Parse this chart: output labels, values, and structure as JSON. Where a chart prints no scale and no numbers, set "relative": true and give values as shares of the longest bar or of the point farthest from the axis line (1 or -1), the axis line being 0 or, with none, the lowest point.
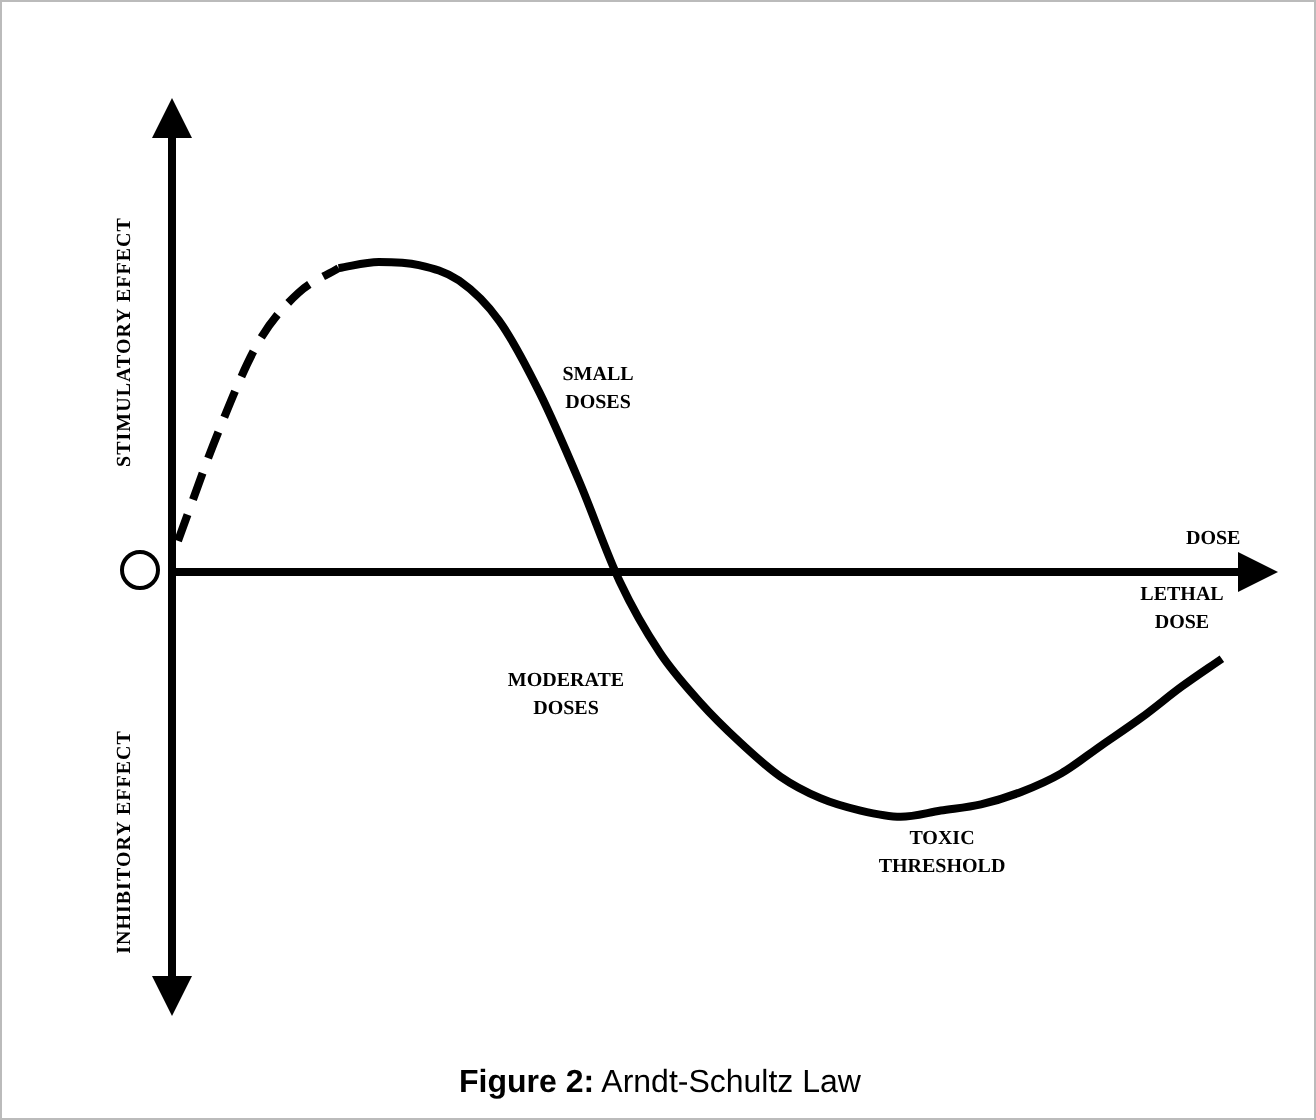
{
  "chart_data": {
    "type": "line",
    "relative": true,
    "xlabel": "DOSE",
    "marker": "none",
    "categories": [
      null,
      null,
      null,
      null,
      null,
      null,
      null,
      null,
      null,
      null,
      null,
      null,
      null,
      null,
      null,
      null,
      null,
      null,
      null,
      null,
      null,
      null,
      null,
      null,
      null,
      null,
      null,
      null
    ],
    "series": [
      {
        "color": "#000000",
        "line_style": "dashed",
        "values": [
          0.1,
          0.45,
          0.74,
          0.9,
          0.98,
          null,
          null,
          null,
          null,
          null,
          null,
          null,
          null,
          null,
          null,
          null,
          null,
          null,
          null,
          null,
          null,
          null,
          null,
          null,
          null,
          null,
          null,
          null
        ]
      },
      {
        "color": "#000000",
        "line_style": "solid",
        "values": [
          null,
          null,
          null,
          null,
          0.98,
          1,
          0.99,
          0.94,
          0.81,
          0.58,
          0.29,
          -0.03,
          -0.26,
          -0.42,
          -0.55,
          -0.66,
          -0.73,
          -0.77,
          -0.79,
          -0.77,
          -0.75,
          -0.71,
          -0.65,
          -0.56,
          -0.47,
          -0.37,
          -0.28,
          null
        ]
      }
    ],
    "annotations": [
      "STIMULATORY EFFECT",
      "INHIBITORY EFFECT",
      "SMALL DOSES",
      "MODERATE DOSES",
      "TOXIC THRESHOLD",
      "LETHAL DOSE",
      "Figure 2: Arndt-Schultz Law"
    ]
  }
}
